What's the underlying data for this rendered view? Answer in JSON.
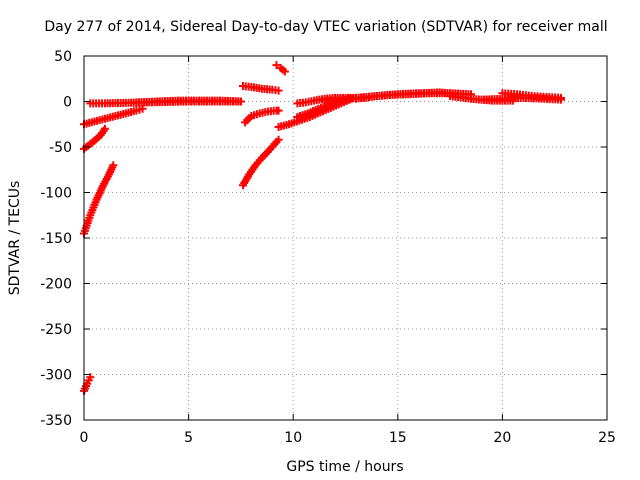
{
  "chart_data": {
    "type": "scatter",
    "title": "Day 277 of 2014, Sidereal Day-to-day VTEC variation (SDTVAR) for receiver mall",
    "xlabel": "GPS time / hours",
    "ylabel": "SDTVAR / TECUs",
    "xlim": [
      0,
      25
    ],
    "ylim": [
      -350,
      50
    ],
    "xticks": [
      0,
      5,
      10,
      15,
      20,
      25
    ],
    "yticks": [
      -350,
      -300,
      -250,
      -200,
      -150,
      -100,
      -50,
      0,
      50
    ],
    "grid": true,
    "legend": "none",
    "marker": "plus",
    "color": "#ff0000",
    "series": [
      {
        "x": [
          0.0,
          0.3,
          0.6,
          0.9,
          1.2,
          1.4
        ],
        "y": [
          -145,
          -125,
          -108,
          -93,
          -80,
          -70
        ]
      },
      {
        "x": [
          0.0,
          0.15,
          0.3
        ],
        "y": [
          -318,
          -310,
          -303
        ]
      },
      {
        "x": [
          0.0,
          0.4,
          0.8,
          1.0
        ],
        "y": [
          -52,
          -45,
          -37,
          -30
        ]
      },
      {
        "x": [
          0.0,
          0.5,
          1.0,
          1.5,
          2.0,
          2.5,
          2.8
        ],
        "y": [
          -25,
          -22,
          -19,
          -16,
          -13,
          -10,
          -8
        ]
      },
      {
        "x": [
          0.3,
          1.0,
          2.0,
          3.0,
          4.0,
          5.0,
          6.0,
          7.0,
          7.5
        ],
        "y": [
          -2,
          -2,
          -1.5,
          -1,
          -0.5,
          0,
          0,
          0,
          0
        ]
      },
      {
        "x": [
          2.5,
          3.5,
          4.5,
          5.5,
          6.5,
          7.5
        ],
        "y": [
          -1,
          0,
          1,
          1,
          1,
          0
        ]
      },
      {
        "x": [
          7.6,
          7.9,
          8.2,
          8.5,
          8.8,
          9.1,
          9.3
        ],
        "y": [
          -92,
          -80,
          -70,
          -62,
          -55,
          -47,
          -42
        ]
      },
      {
        "x": [
          7.7,
          8.0,
          8.4,
          8.8,
          9.2,
          9.3
        ],
        "y": [
          -23,
          -16,
          -13,
          -11,
          -10,
          -10
        ]
      },
      {
        "x": [
          7.6,
          8.0,
          8.5,
          9.0,
          9.3
        ],
        "y": [
          17,
          16,
          14,
          13,
          12
        ]
      },
      {
        "x": [
          9.2,
          9.4,
          9.6
        ],
        "y": [
          40,
          37,
          33
        ]
      },
      {
        "x": [
          9.3,
          9.8,
          10.3,
          10.8,
          11.3,
          11.8,
          12.3,
          12.8
        ],
        "y": [
          -28,
          -25,
          -21,
          -17,
          -12,
          -7,
          -2,
          3
        ]
      },
      {
        "x": [
          10.2,
          10.7,
          11.2,
          11.7,
          12.2,
          12.7
        ],
        "y": [
          -17,
          -13,
          -8,
          -4,
          0,
          3
        ]
      },
      {
        "x": [
          10.2,
          10.6,
          11.0,
          11.5,
          12.0,
          12.5,
          13.0,
          13.5
        ],
        "y": [
          -2,
          -1,
          1,
          3,
          4,
          4,
          4,
          4
        ]
      },
      {
        "x": [
          11.5,
          12.5,
          13.5,
          14.5,
          15.5,
          16.5,
          17.5,
          18.5
        ],
        "y": [
          1,
          3,
          5,
          7,
          8,
          9,
          9,
          8
        ]
      },
      {
        "x": [
          13.0,
          14.0,
          15.0,
          16.0,
          17.0,
          18.0
        ],
        "y": [
          3,
          6,
          8,
          9,
          10,
          8
        ]
      },
      {
        "x": [
          17.5,
          18.5,
          19.5,
          20.5
        ],
        "y": [
          6,
          3,
          1,
          1
        ]
      },
      {
        "x": [
          20.0,
          20.7,
          21.4,
          22.1,
          22.8
        ],
        "y": [
          9,
          8,
          6,
          5,
          4
        ]
      },
      {
        "x": [
          19.0,
          20.0,
          21.0,
          22.0,
          22.8
        ],
        "y": [
          2,
          3,
          4,
          3,
          2
        ]
      }
    ]
  }
}
